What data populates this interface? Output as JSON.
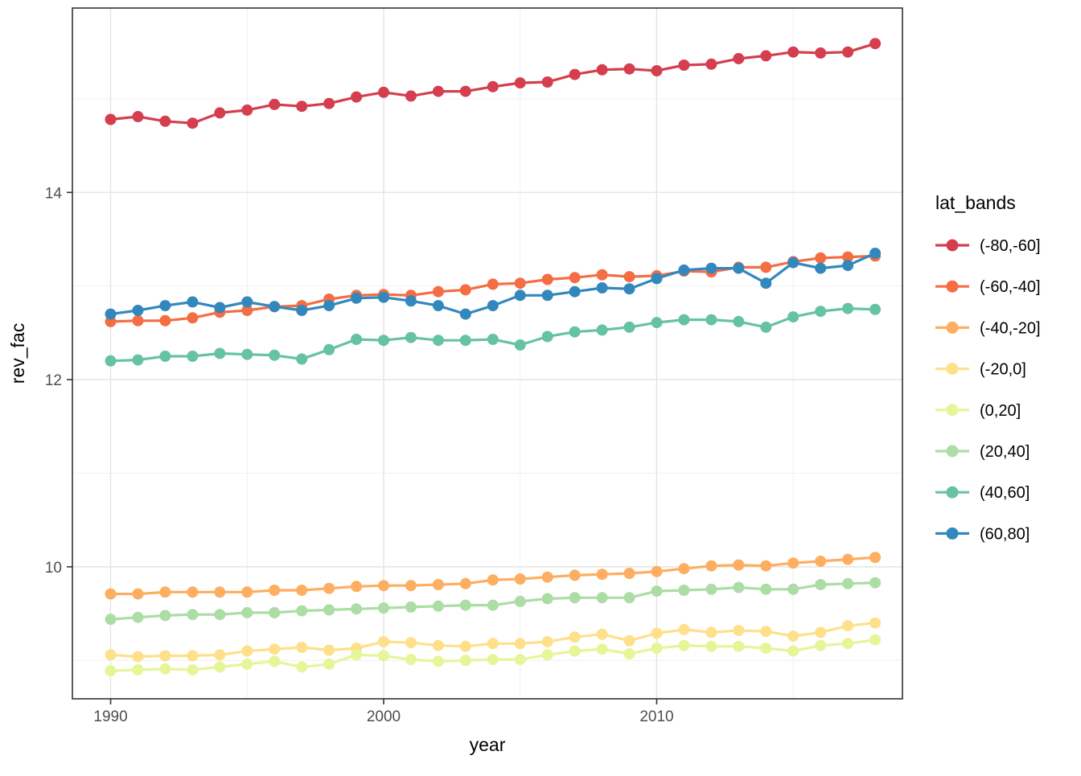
{
  "chart_data": {
    "type": "line",
    "title": "",
    "xlabel": "year",
    "ylabel": "rev_fac",
    "legend_title": "lat_bands",
    "legend_position": "right",
    "grid": true,
    "xlim": [
      1988.6,
      2019.0
    ],
    "ylim": [
      8.59,
      15.97
    ],
    "x_major_ticks": [
      1990,
      2000,
      2010
    ],
    "x_minor_ticks": [
      1995,
      2005,
      2015
    ],
    "y_major_ticks": [
      10,
      12,
      14
    ],
    "y_minor_ticks": [
      9,
      11,
      13,
      15
    ],
    "x": [
      1990,
      1991,
      1992,
      1993,
      1994,
      1995,
      1996,
      1997,
      1998,
      1999,
      2000,
      2001,
      2002,
      2003,
      2004,
      2005,
      2006,
      2007,
      2008,
      2009,
      2010,
      2011,
      2012,
      2013,
      2014,
      2015,
      2016,
      2017,
      2018
    ],
    "series": [
      {
        "name": "(-80,-60]",
        "color": "#d53e4f",
        "values": [
          14.78,
          14.81,
          14.76,
          14.74,
          14.85,
          14.88,
          14.94,
          14.92,
          14.95,
          15.02,
          15.07,
          15.03,
          15.08,
          15.08,
          15.13,
          15.17,
          15.18,
          15.26,
          15.31,
          15.32,
          15.3,
          15.36,
          15.37,
          15.43,
          15.46,
          15.5,
          15.49,
          15.5,
          15.59
        ]
      },
      {
        "name": "(-60,-40]",
        "color": "#f46d43",
        "values": [
          12.62,
          12.63,
          12.63,
          12.66,
          12.72,
          12.74,
          12.78,
          12.79,
          12.86,
          12.9,
          12.91,
          12.9,
          12.94,
          12.96,
          13.02,
          13.03,
          13.07,
          13.09,
          13.12,
          13.1,
          13.11,
          13.16,
          13.15,
          13.2,
          13.2,
          13.26,
          13.3,
          13.31,
          13.32
        ]
      },
      {
        "name": "(-40,-20]",
        "color": "#fdae61",
        "values": [
          9.71,
          9.71,
          9.73,
          9.73,
          9.73,
          9.73,
          9.75,
          9.75,
          9.77,
          9.79,
          9.8,
          9.8,
          9.81,
          9.82,
          9.86,
          9.87,
          9.89,
          9.91,
          9.92,
          9.93,
          9.95,
          9.98,
          10.01,
          10.02,
          10.01,
          10.04,
          10.06,
          10.08,
          10.1
        ]
      },
      {
        "name": "(-20,0]",
        "color": "#fee08b",
        "values": [
          9.06,
          9.04,
          9.05,
          9.05,
          9.06,
          9.1,
          9.12,
          9.14,
          9.11,
          9.13,
          9.2,
          9.19,
          9.16,
          9.15,
          9.18,
          9.18,
          9.2,
          9.25,
          9.28,
          9.21,
          9.29,
          9.33,
          9.3,
          9.32,
          9.31,
          9.26,
          9.3,
          9.37,
          9.4
        ]
      },
      {
        "name": "(0,20]",
        "color": "#e6f598",
        "values": [
          8.89,
          8.9,
          8.91,
          8.9,
          8.93,
          8.96,
          8.99,
          8.93,
          8.96,
          9.06,
          9.05,
          9.01,
          8.99,
          9.0,
          9.01,
          9.01,
          9.06,
          9.1,
          9.12,
          9.07,
          9.13,
          9.16,
          9.15,
          9.15,
          9.13,
          9.1,
          9.16,
          9.18,
          9.22
        ]
      },
      {
        "name": "(20,40]",
        "color": "#abdda4",
        "values": [
          9.44,
          9.46,
          9.48,
          9.49,
          9.49,
          9.51,
          9.51,
          9.53,
          9.54,
          9.55,
          9.56,
          9.57,
          9.58,
          9.59,
          9.59,
          9.63,
          9.66,
          9.67,
          9.67,
          9.67,
          9.74,
          9.75,
          9.76,
          9.78,
          9.76,
          9.76,
          9.81,
          9.82,
          9.83
        ]
      },
      {
        "name": "(40,60]",
        "color": "#66c2a5",
        "values": [
          12.2,
          12.21,
          12.25,
          12.25,
          12.28,
          12.27,
          12.26,
          12.22,
          12.32,
          12.43,
          12.42,
          12.45,
          12.42,
          12.42,
          12.43,
          12.37,
          12.46,
          12.51,
          12.53,
          12.56,
          12.61,
          12.64,
          12.64,
          12.62,
          12.56,
          12.67,
          12.73,
          12.76,
          12.75
        ]
      },
      {
        "name": "(60,80]",
        "color": "#3288bd",
        "values": [
          12.7,
          12.74,
          12.79,
          12.83,
          12.77,
          12.83,
          12.78,
          12.74,
          12.79,
          12.87,
          12.88,
          12.84,
          12.79,
          12.7,
          12.79,
          12.9,
          12.9,
          12.94,
          12.98,
          12.97,
          13.08,
          13.17,
          13.19,
          13.19,
          13.03,
          13.25,
          13.19,
          13.22,
          13.35
        ]
      }
    ],
    "theme": {
      "panel_border": "#333333",
      "grid_major": "#e4e4e4",
      "grid_minor": "#f0f0f0",
      "tick_color": "#333333",
      "tick_label_color": "#4d4d4d",
      "title_color": "#000000"
    }
  }
}
